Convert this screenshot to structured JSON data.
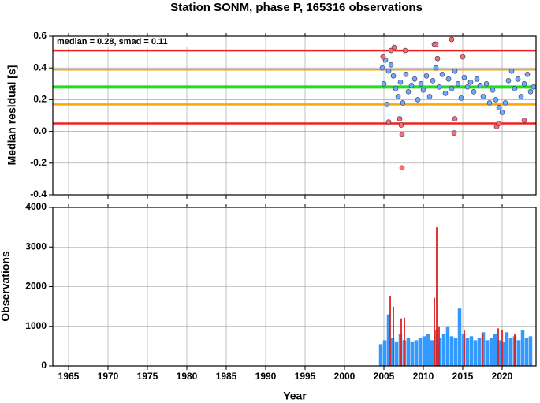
{
  "chart_data": [
    {
      "type": "scatter",
      "title": "Station SONM, phase P, 165316 observations",
      "y_label": "Median residual [s]",
      "annotation": "median = 0.28, smad = 0.11",
      "xlim": [
        1963,
        2024.3
      ],
      "ylim": [
        -0.4,
        0.6
      ],
      "yticks": [
        -0.4,
        -0.2,
        {
          "value": 0,
          "label": "0.0"
        },
        0.2,
        0.4,
        0.6
      ],
      "grid": true,
      "hlines": [
        {
          "value": 0.51,
          "color": "#ee2222"
        },
        {
          "value": 0.39,
          "color": "#ffa500"
        },
        {
          "value": 0.28,
          "color": "#22dd22"
        },
        {
          "value": 0.17,
          "color": "#ffa500"
        },
        {
          "value": 0.05,
          "color": "#ee2222"
        }
      ],
      "series": [
        {
          "color": "#6fa8ff",
          "x": [
            2004.8,
            2005.0,
            2005.2,
            2005.4,
            2005.6,
            2005.9,
            2006.2,
            2006.5,
            2006.8,
            2007.1,
            2007.4,
            2007.8,
            2008.1,
            2008.5,
            2008.9,
            2009.3,
            2009.7,
            2010.0,
            2010.4,
            2010.8,
            2011.2,
            2011.6,
            2012.0,
            2012.4,
            2012.8,
            2013.2,
            2013.6,
            2014.0,
            2014.4,
            2014.8,
            2015.2,
            2015.6,
            2016.0,
            2016.4,
            2016.8,
            2017.2,
            2017.6,
            2018.0,
            2018.4,
            2018.8,
            2019.2,
            2019.6,
            2020.0,
            2020.4,
            2020.8,
            2021.2,
            2021.6,
            2022.0,
            2022.4,
            2022.8,
            2023.2,
            2023.6,
            2024.0
          ],
          "values": [
            0.4,
            0.3,
            0.45,
            0.17,
            0.38,
            0.42,
            0.35,
            0.27,
            0.22,
            0.31,
            0.18,
            0.36,
            0.25,
            0.29,
            0.33,
            0.2,
            0.3,
            0.26,
            0.35,
            0.22,
            0.32,
            0.4,
            0.28,
            0.36,
            0.24,
            0.33,
            0.27,
            0.38,
            0.3,
            0.21,
            0.34,
            0.28,
            0.31,
            0.25,
            0.33,
            0.29,
            0.22,
            0.3,
            0.18,
            0.26,
            0.2,
            0.15,
            0.12,
            0.18,
            0.32,
            0.38,
            0.27,
            0.33,
            0.22,
            0.3,
            0.36,
            0.25,
            0.28
          ]
        },
        {
          "color": "#ff6b6b",
          "x": [
            2004.9,
            2005.6,
            2005.9,
            2006.3,
            2007.0,
            2007.2,
            2007.3,
            2007.3,
            2007.7,
            2011.4,
            2011.6,
            2011.8,
            2013.6,
            2013.9,
            2014.0,
            2015.0,
            2019.3,
            2019.6,
            2022.8
          ],
          "values": [
            0.47,
            0.06,
            0.51,
            0.53,
            0.08,
            0.04,
            -0.02,
            -0.23,
            0.51,
            0.55,
            0.55,
            0.46,
            0.58,
            -0.01,
            0.08,
            0.47,
            0.03,
            0.05,
            0.07
          ]
        }
      ]
    },
    {
      "type": "bar",
      "x_label": "Year",
      "y_label": "Observations",
      "xlim": [
        1963,
        2024.3
      ],
      "xticks": [
        1965,
        1970,
        1975,
        1980,
        1985,
        1990,
        1995,
        2000,
        2005,
        2010,
        2015,
        2020
      ],
      "ylim": [
        0,
        4000
      ],
      "yticks": [
        0,
        1000,
        2000,
        3000,
        4000
      ],
      "grid": true,
      "series": [
        {
          "color": "#3399ff",
          "x": [
            2004.6,
            2005.1,
            2005.6,
            2006.1,
            2006.6,
            2007.1,
            2007.6,
            2008.1,
            2008.6,
            2009.1,
            2009.6,
            2010.1,
            2010.6,
            2011.1,
            2011.6,
            2012.1,
            2012.6,
            2013.1,
            2013.6,
            2014.1,
            2014.6,
            2015.1,
            2015.6,
            2016.1,
            2016.6,
            2017.1,
            2017.6,
            2018.1,
            2018.6,
            2019.1,
            2019.6,
            2020.1,
            2020.6,
            2021.1,
            2021.6,
            2022.1,
            2022.6,
            2023.1,
            2023.6
          ],
          "values": [
            550,
            650,
            1300,
            700,
            600,
            800,
            650,
            700,
            600,
            650,
            700,
            750,
            800,
            650,
            900,
            700,
            800,
            1000,
            750,
            700,
            1450,
            800,
            700,
            750,
            650,
            700,
            850,
            650,
            700,
            800,
            650,
            600,
            850,
            700,
            750,
            650,
            900,
            700,
            750
          ]
        },
        {
          "color": "#dd2222",
          "x": [
            2005.8,
            2006.2,
            2007.2,
            2007.6,
            2011.4,
            2011.7,
            2012.0,
            2015.2,
            2017.5,
            2019.5,
            2020.0,
            2021.6
          ],
          "values": [
            1770,
            1500,
            1200,
            1220,
            1720,
            3500,
            1000,
            900,
            800,
            950,
            900,
            800
          ]
        }
      ]
    }
  ]
}
